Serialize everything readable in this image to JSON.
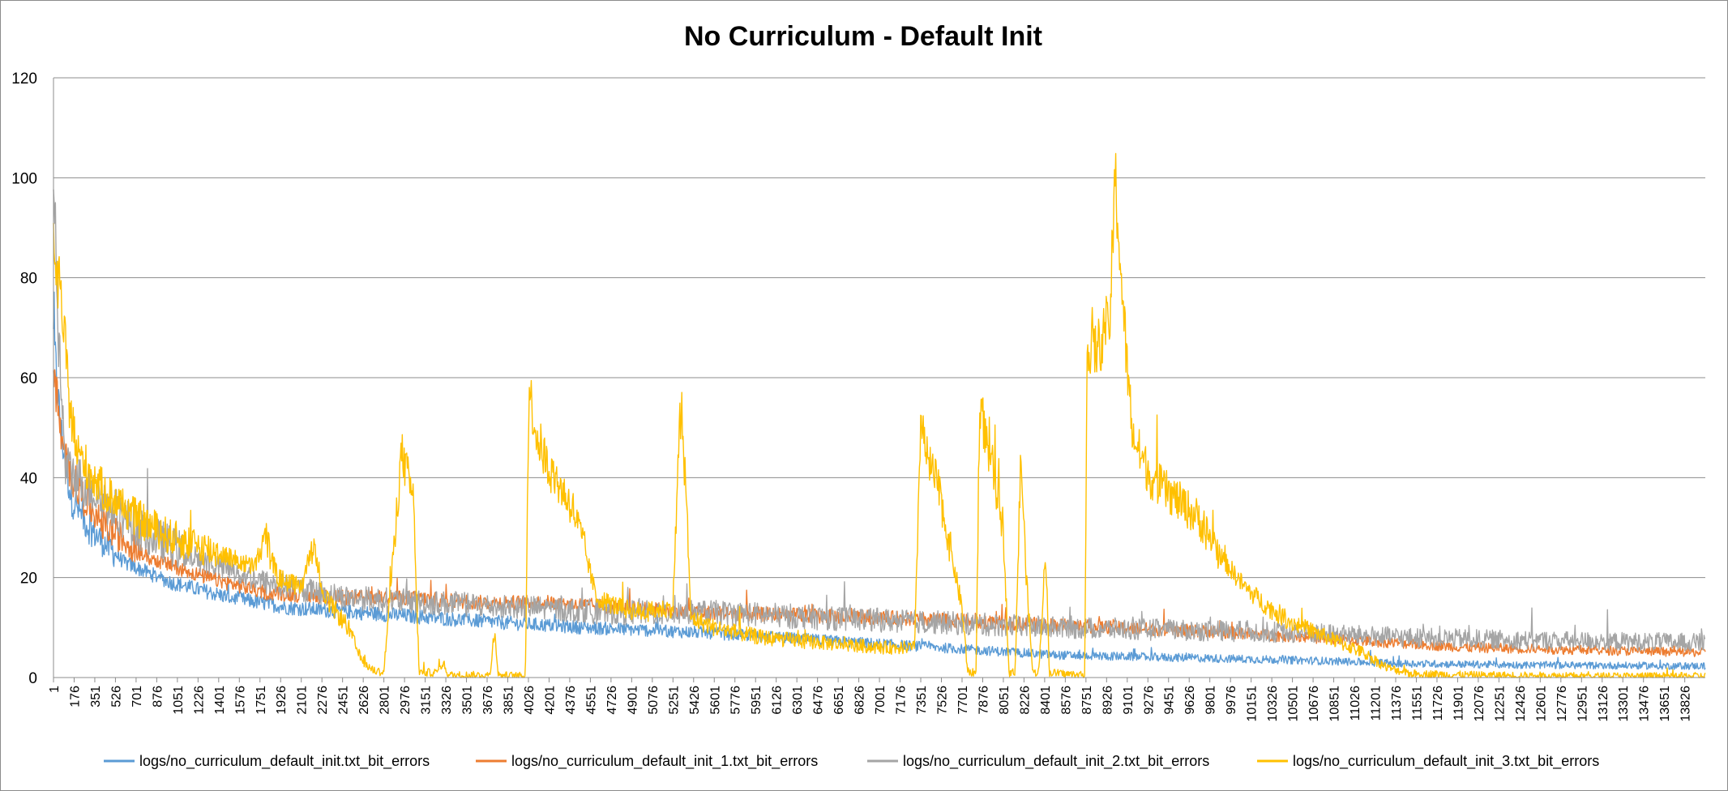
{
  "chart_data": {
    "type": "line",
    "title": "No Curriculum - Default Init",
    "xlabel": "",
    "ylabel": "",
    "ylim": [
      0,
      120
    ],
    "y_ticks": [
      "0",
      "20",
      "40",
      "60",
      "80",
      "100",
      "120"
    ],
    "x_range": [
      1,
      14000
    ],
    "x_tick_labels": [
      "1",
      "176",
      "351",
      "526",
      "701",
      "876",
      "1051",
      "1226",
      "1401",
      "1576",
      "1751",
      "1926",
      "2101",
      "2276",
      "2451",
      "2626",
      "2801",
      "2976",
      "3151",
      "3326",
      "3501",
      "3676",
      "3851",
      "4026",
      "4201",
      "4376",
      "4551",
      "4726",
      "4901",
      "5076",
      "5251",
      "5426",
      "5601",
      "5776",
      "5951",
      "6126",
      "6301",
      "6476",
      "6651",
      "6826",
      "7001",
      "7176",
      "7351",
      "7526",
      "7701",
      "7876",
      "8051",
      "8226",
      "8401",
      "8576",
      "8751",
      "8926",
      "9101",
      "9276",
      "9451",
      "9626",
      "9801",
      "9976",
      "10151",
      "10326",
      "10501",
      "10676",
      "10851",
      "11026",
      "11201",
      "11376",
      "11551",
      "11726",
      "11901",
      "12076",
      "12251",
      "12426",
      "12601",
      "12776",
      "12951",
      "13126",
      "13301",
      "13476",
      "13651",
      "13826"
    ],
    "grid": "horizontal",
    "legend_position": "bottom",
    "series": [
      {
        "name": "logs/no_curriculum_default_init.txt_bit_errors",
        "color": "#5B9BD5",
        "noise": 1.5,
        "points": [
          [
            1,
            68
          ],
          [
            60,
            50
          ],
          [
            150,
            36
          ],
          [
            300,
            30
          ],
          [
            600,
            23
          ],
          [
            1000,
            19
          ],
          [
            1500,
            16
          ],
          [
            2000,
            14
          ],
          [
            2600,
            13
          ],
          [
            3200,
            12
          ],
          [
            3800,
            11
          ],
          [
            4500,
            10
          ],
          [
            5500,
            9
          ],
          [
            6500,
            7.5
          ],
          [
            7500,
            6
          ],
          [
            8500,
            4.5
          ],
          [
            9500,
            4
          ],
          [
            10500,
            3.5
          ],
          [
            11500,
            2.8
          ],
          [
            12500,
            2.5
          ],
          [
            14000,
            2.3
          ]
        ]
      },
      {
        "name": "logs/no_curriculum_default_init_1.txt_bit_errors",
        "color": "#ED7D31",
        "noise": 1.5,
        "points": [
          [
            1,
            62
          ],
          [
            80,
            45
          ],
          [
            200,
            38
          ],
          [
            400,
            31
          ],
          [
            800,
            24
          ],
          [
            1300,
            20
          ],
          [
            1800,
            17
          ],
          [
            2400,
            16
          ],
          [
            3000,
            16
          ],
          [
            3600,
            15
          ],
          [
            4200,
            15
          ],
          [
            4800,
            14
          ],
          [
            5500,
            13
          ],
          [
            6200,
            12.5
          ],
          [
            7000,
            12
          ],
          [
            8000,
            11
          ],
          [
            9000,
            10
          ],
          [
            10000,
            9
          ],
          [
            11000,
            7.5
          ],
          [
            12000,
            6
          ],
          [
            13000,
            5.5
          ],
          [
            14000,
            5
          ]
        ]
      },
      {
        "name": "logs/no_curriculum_default_init_2.txt_bit_errors",
        "color": "#A5A5A5",
        "noise": 2.5,
        "points": [
          [
            1,
            103
          ],
          [
            40,
            70
          ],
          [
            100,
            42
          ],
          [
            300,
            38
          ],
          [
            700,
            30
          ],
          [
            1200,
            24
          ],
          [
            1800,
            19
          ],
          [
            2500,
            16
          ],
          [
            3200,
            15
          ],
          [
            4000,
            14
          ],
          [
            4800,
            13
          ],
          [
            5600,
            13
          ],
          [
            6500,
            12
          ],
          [
            7500,
            11
          ],
          [
            8500,
            10
          ],
          [
            9500,
            9.5
          ],
          [
            10500,
            9
          ],
          [
            11500,
            8
          ],
          [
            12500,
            7.5
          ],
          [
            14000,
            7
          ]
        ]
      },
      {
        "name": "logs/no_curriculum_default_init_3.txt_bit_errors",
        "color": "#FFC000",
        "noise": 2.0,
        "points": [
          [
            1,
            84
          ],
          [
            40,
            80
          ],
          [
            80,
            72
          ],
          [
            130,
            56
          ],
          [
            200,
            45
          ],
          [
            400,
            38
          ],
          [
            700,
            32
          ],
          [
            1000,
            28
          ],
          [
            1400,
            25
          ],
          [
            1700,
            22
          ],
          [
            1800,
            28
          ],
          [
            1900,
            20
          ],
          [
            2100,
            18
          ],
          [
            2200,
            27
          ],
          [
            2300,
            16
          ],
          [
            2500,
            10
          ],
          [
            2600,
            4
          ],
          [
            2700,
            1.5
          ],
          [
            2800,
            1
          ],
          [
            2950,
            45
          ],
          [
            3050,
            36
          ],
          [
            3100,
            1
          ],
          [
            3250,
            1
          ],
          [
            3300,
            3
          ],
          [
            3350,
            0.5
          ],
          [
            3700,
            0.5
          ],
          [
            3740,
            10
          ],
          [
            3770,
            0.5
          ],
          [
            4000,
            0.3
          ],
          [
            4030,
            58
          ],
          [
            4100,
            48
          ],
          [
            4200,
            42
          ],
          [
            4300,
            38
          ],
          [
            4400,
            34
          ],
          [
            4500,
            26
          ],
          [
            4600,
            16
          ],
          [
            4800,
            14
          ],
          [
            5000,
            13
          ],
          [
            5250,
            14
          ],
          [
            5310,
            52
          ],
          [
            5360,
            40
          ],
          [
            5400,
            12
          ],
          [
            5600,
            10
          ],
          [
            6000,
            8
          ],
          [
            6500,
            7
          ],
          [
            7000,
            6
          ],
          [
            7300,
            6
          ],
          [
            7350,
            52
          ],
          [
            7400,
            44
          ],
          [
            7500,
            38
          ],
          [
            7600,
            26
          ],
          [
            7700,
            14
          ],
          [
            7750,
            1
          ],
          [
            7820,
            1
          ],
          [
            7850,
            56
          ],
          [
            7900,
            48
          ],
          [
            7960,
            42
          ],
          [
            8050,
            30
          ],
          [
            8100,
            1
          ],
          [
            8150,
            1
          ],
          [
            8200,
            45
          ],
          [
            8240,
            22
          ],
          [
            8300,
            1
          ],
          [
            8350,
            1
          ],
          [
            8410,
            26
          ],
          [
            8440,
            1
          ],
          [
            8700,
            0.5
          ],
          [
            8740,
            0.5
          ],
          [
            8760,
            64
          ],
          [
            8850,
            66
          ],
          [
            8950,
            70
          ],
          [
            9000,
            100
          ],
          [
            9050,
            80
          ],
          [
            9100,
            62
          ],
          [
            9150,
            48
          ],
          [
            9300,
            40
          ],
          [
            9500,
            36
          ],
          [
            9700,
            32
          ],
          [
            9900,
            24
          ],
          [
            10100,
            18
          ],
          [
            10300,
            14
          ],
          [
            10500,
            11
          ],
          [
            10800,
            8
          ],
          [
            11100,
            5
          ],
          [
            11300,
            2
          ],
          [
            11500,
            0.8
          ],
          [
            12000,
            0.5
          ],
          [
            13000,
            0.3
          ],
          [
            14000,
            0.3
          ]
        ]
      }
    ]
  }
}
